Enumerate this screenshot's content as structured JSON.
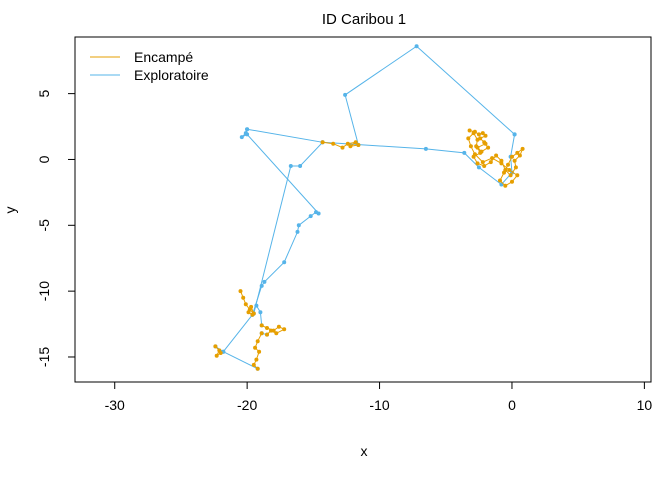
{
  "chart_data": {
    "type": "line",
    "title": "ID Caribou 1",
    "xlabel": "x",
    "ylabel": "y",
    "xlim": [
      -33,
      10.5
    ],
    "ylim": [
      -16.9,
      9.3
    ],
    "xticks": [
      -30,
      -20,
      -10,
      0,
      10
    ],
    "yticks": [
      -15,
      -10,
      -5,
      0,
      5
    ],
    "legend_position": "top-left",
    "series": [
      {
        "name": "Encampé",
        "color": "#E69F00",
        "segments": [
          [
            [
              -14.3,
              1.3
            ],
            [
              -13.5,
              1.2
            ],
            [
              -12.8,
              0.9
            ],
            [
              -12.4,
              1.2
            ],
            [
              -11.8,
              1.3
            ],
            [
              -12.2,
              1.0
            ],
            [
              -11.6,
              1.1
            ]
          ],
          [
            [
              -3.2,
              2.2
            ],
            [
              -2.8,
              2.1
            ],
            [
              -2.5,
              1.9
            ],
            [
              -2.2,
              2.0
            ],
            [
              -2.0,
              1.8
            ],
            [
              -2.4,
              1.6
            ],
            [
              -2.0,
              1.2
            ],
            [
              -2.6,
              0.9
            ],
            [
              -2.4,
              0.5
            ],
            [
              -2.9,
              0.2
            ],
            [
              -2.6,
              -0.3
            ],
            [
              -2.1,
              -0.5
            ],
            [
              -1.6,
              -0.2
            ],
            [
              -1.2,
              0.3
            ],
            [
              -0.8,
              -0.1
            ],
            [
              -0.5,
              -0.8
            ],
            [
              -0.1,
              -1.2
            ],
            [
              0.3,
              -0.6
            ],
            [
              0.2,
              -0.1
            ],
            [
              0.6,
              0.3
            ],
            [
              0.8,
              0.8
            ],
            [
              0.4,
              0.5
            ],
            [
              0.0,
              0.2
            ],
            [
              -0.3,
              -0.4
            ],
            [
              -0.6,
              -1.0
            ],
            [
              -0.9,
              -1.6
            ],
            [
              -0.5,
              -2.0
            ],
            [
              0.0,
              -1.7
            ],
            [
              0.4,
              -1.2
            ],
            [
              -0.2,
              -0.8
            ],
            [
              -0.8,
              -0.3
            ],
            [
              -1.5,
              0.1
            ],
            [
              -2.2,
              -0.2
            ],
            [
              -2.8,
              0.4
            ],
            [
              -3.1,
              1.0
            ],
            [
              -3.3,
              1.6
            ],
            [
              -2.9,
              2.0
            ],
            [
              -2.6,
              1.5
            ],
            [
              -2.7,
              1.0
            ],
            [
              -2.3,
              0.6
            ],
            [
              -1.8,
              0.9
            ],
            [
              -2.1,
              1.3
            ]
          ],
          [
            [
              -20.5,
              -10.0
            ],
            [
              -20.3,
              -10.5
            ],
            [
              -20.1,
              -11.0
            ],
            [
              -19.8,
              -11.4
            ],
            [
              -19.5,
              -11.7
            ],
            [
              -19.7,
              -11.2
            ],
            [
              -19.9,
              -11.6
            ],
            [
              -19.6,
              -11.8
            ]
          ],
          [
            [
              -18.9,
              -12.6
            ],
            [
              -18.5,
              -12.8
            ],
            [
              -18.0,
              -13.0
            ],
            [
              -17.6,
              -12.7
            ],
            [
              -17.2,
              -12.9
            ],
            [
              -17.8,
              -13.2
            ],
            [
              -18.2,
              -13.0
            ],
            [
              -18.5,
              -13.3
            ]
          ],
          [
            [
              -18.9,
              -13.2
            ],
            [
              -19.2,
              -13.8
            ],
            [
              -19.4,
              -14.3
            ],
            [
              -19.1,
              -14.6
            ],
            [
              -19.3,
              -15.2
            ],
            [
              -19.5,
              -15.6
            ],
            [
              -19.2,
              -15.9
            ]
          ],
          [
            [
              -22.4,
              -14.2
            ],
            [
              -22.1,
              -14.5
            ],
            [
              -22.3,
              -14.9
            ],
            [
              -22.0,
              -14.7
            ]
          ]
        ]
      },
      {
        "name": "Exploratoire",
        "color": "#56B4E9",
        "segments": [
          [
            [
              0.2,
              1.9
            ],
            [
              -0.1,
              0.2
            ],
            [
              0.0,
              -1.0
            ],
            [
              -0.8,
              -1.9
            ],
            [
              -2.5,
              -0.6
            ],
            [
              -3.6,
              0.5
            ],
            [
              -6.5,
              0.8
            ],
            [
              -14.3,
              1.3
            ]
          ],
          [
            [
              -11.6,
              1.1
            ],
            [
              -12.6,
              4.9
            ],
            [
              -7.2,
              8.6
            ],
            [
              0.2,
              1.9
            ]
          ],
          [
            [
              -20.0,
              2.3
            ],
            [
              -20.1,
              2.0
            ],
            [
              -20.4,
              1.7
            ],
            [
              -20.0,
              1.9
            ],
            [
              -14.6,
              -4.1
            ],
            [
              -14.8,
              -4.0
            ],
            [
              -15.2,
              -4.3
            ],
            [
              -16.1,
              -5.0
            ],
            [
              -16.2,
              -5.5
            ],
            [
              -17.2,
              -7.8
            ],
            [
              -18.7,
              -9.3
            ],
            [
              -18.9,
              -9.6
            ],
            [
              -19.6,
              -11.8
            ]
          ],
          [
            [
              -19.5,
              -11.7
            ],
            [
              -16.7,
              -0.5
            ],
            [
              -16.0,
              -0.5
            ],
            [
              -14.3,
              1.3
            ],
            [
              -20.0,
              2.3
            ]
          ],
          [
            [
              -19.6,
              -11.8
            ],
            [
              -21.8,
              -14.6
            ],
            [
              -22.4,
              -14.2
            ]
          ],
          [
            [
              -19.3,
              -11.1
            ],
            [
              -19.0,
              -11.6
            ],
            [
              -18.9,
              -12.6
            ]
          ],
          [
            [
              -18.5,
              -13.3
            ],
            [
              -18.9,
              -13.2
            ]
          ],
          [
            [
              -19.2,
              -15.9
            ],
            [
              -21.8,
              -14.6
            ]
          ]
        ]
      }
    ]
  }
}
